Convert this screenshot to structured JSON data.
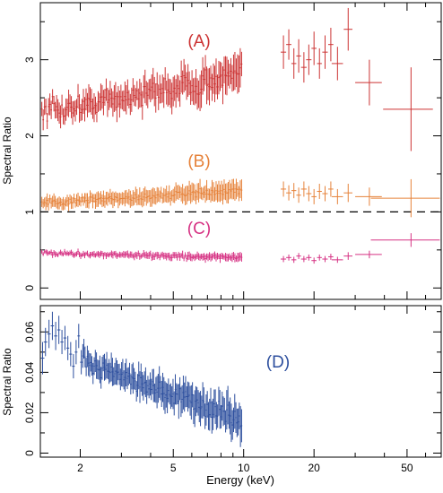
{
  "chart_data": [
    {
      "type": "scatter",
      "panel": "top",
      "ylabel": "Spectral Ratio",
      "xscale": "log",
      "xlim": [
        1.35,
        70
      ],
      "ylim": [
        -0.15,
        3.75
      ],
      "yticks": [
        0,
        1,
        2,
        3
      ],
      "ytick_labels": [
        "0",
        "1",
        "2",
        "3"
      ],
      "reference_line": {
        "y": 1,
        "style": "dashed"
      },
      "series": [
        {
          "label": "(A)",
          "color": "#cc3333",
          "low_band": {
            "x_start": 1.37,
            "x_end": 9.8,
            "y_start": 2.3,
            "y_end": 2.8,
            "scatter": 0.12,
            "err": 0.13,
            "n": 150
          },
          "high_points": [
            {
              "x": 14.8,
              "y": 3.1,
              "xerr": 0.4,
              "yerr": 0.22
            },
            {
              "x": 15.6,
              "y": 3.2,
              "xerr": 0.4,
              "yerr": 0.2
            },
            {
              "x": 16.4,
              "y": 2.95,
              "xerr": 0.4,
              "yerr": 0.2
            },
            {
              "x": 17.2,
              "y": 3.05,
              "xerr": 0.4,
              "yerr": 0.22
            },
            {
              "x": 18.1,
              "y": 2.9,
              "xerr": 0.5,
              "yerr": 0.2
            },
            {
              "x": 19.0,
              "y": 3.0,
              "xerr": 0.5,
              "yerr": 0.2
            },
            {
              "x": 20.0,
              "y": 3.15,
              "xerr": 0.5,
              "yerr": 0.22
            },
            {
              "x": 21.1,
              "y": 2.95,
              "xerr": 0.5,
              "yerr": 0.2
            },
            {
              "x": 22.3,
              "y": 3.1,
              "xerr": 0.6,
              "yerr": 0.22
            },
            {
              "x": 23.6,
              "y": 3.2,
              "xerr": 0.6,
              "yerr": 0.22
            },
            {
              "x": 25.2,
              "y": 2.95,
              "xerr": 1.4,
              "yerr": 0.22
            },
            {
              "x": 28.0,
              "y": 3.4,
              "xerr": 1.2,
              "yerr": 0.28
            },
            {
              "x": 34.5,
              "y": 2.7,
              "xerr": 4.5,
              "yerr": 0.3
            },
            {
              "x": 52.0,
              "y": 2.35,
              "xerr": 12.5,
              "yerr": 0.55
            }
          ]
        },
        {
          "label": "(B)",
          "color": "#e6823a",
          "low_band": {
            "x_start": 1.37,
            "x_end": 9.8,
            "y_start": 1.12,
            "y_end": 1.28,
            "scatter": 0.04,
            "err": 0.07,
            "n": 150
          },
          "high_points": [
            {
              "x": 14.8,
              "y": 1.3,
              "xerr": 0.4,
              "yerr": 0.1
            },
            {
              "x": 15.6,
              "y": 1.25,
              "xerr": 0.4,
              "yerr": 0.1
            },
            {
              "x": 16.4,
              "y": 1.28,
              "xerr": 0.4,
              "yerr": 0.1
            },
            {
              "x": 17.2,
              "y": 1.22,
              "xerr": 0.4,
              "yerr": 0.1
            },
            {
              "x": 18.1,
              "y": 1.3,
              "xerr": 0.5,
              "yerr": 0.1
            },
            {
              "x": 19.0,
              "y": 1.24,
              "xerr": 0.5,
              "yerr": 0.1
            },
            {
              "x": 20.0,
              "y": 1.2,
              "xerr": 0.5,
              "yerr": 0.1
            },
            {
              "x": 21.1,
              "y": 1.27,
              "xerr": 0.5,
              "yerr": 0.1
            },
            {
              "x": 22.3,
              "y": 1.24,
              "xerr": 0.6,
              "yerr": 0.1
            },
            {
              "x": 23.6,
              "y": 1.3,
              "xerr": 0.6,
              "yerr": 0.1
            },
            {
              "x": 25.2,
              "y": 1.2,
              "xerr": 1.4,
              "yerr": 0.1
            },
            {
              "x": 28.0,
              "y": 1.25,
              "xerr": 1.2,
              "yerr": 0.12
            },
            {
              "x": 34.5,
              "y": 1.2,
              "xerr": 4.5,
              "yerr": 0.12
            },
            {
              "x": 52.0,
              "y": 1.18,
              "xerr": 17.0,
              "yerr": 0.25
            }
          ]
        },
        {
          "label": "(C)",
          "color": "#d63384",
          "low_band": {
            "x_start": 1.37,
            "x_end": 9.8,
            "y_start": 0.46,
            "y_end": 0.4,
            "scatter": 0.02,
            "err": 0.03,
            "n": 150
          },
          "high_points": [
            {
              "x": 14.8,
              "y": 0.38,
              "xerr": 0.4,
              "yerr": 0.04
            },
            {
              "x": 15.6,
              "y": 0.4,
              "xerr": 0.4,
              "yerr": 0.04
            },
            {
              "x": 16.4,
              "y": 0.37,
              "xerr": 0.4,
              "yerr": 0.04
            },
            {
              "x": 17.2,
              "y": 0.42,
              "xerr": 0.4,
              "yerr": 0.04
            },
            {
              "x": 18.1,
              "y": 0.38,
              "xerr": 0.5,
              "yerr": 0.04
            },
            {
              "x": 19.0,
              "y": 0.4,
              "xerr": 0.5,
              "yerr": 0.04
            },
            {
              "x": 20.0,
              "y": 0.36,
              "xerr": 0.5,
              "yerr": 0.04
            },
            {
              "x": 21.1,
              "y": 0.4,
              "xerr": 0.5,
              "yerr": 0.04
            },
            {
              "x": 22.3,
              "y": 0.38,
              "xerr": 0.6,
              "yerr": 0.04
            },
            {
              "x": 23.6,
              "y": 0.41,
              "xerr": 0.6,
              "yerr": 0.04
            },
            {
              "x": 25.2,
              "y": 0.37,
              "xerr": 1.4,
              "yerr": 0.04
            },
            {
              "x": 28.0,
              "y": 0.42,
              "xerr": 1.2,
              "yerr": 0.05
            },
            {
              "x": 34.5,
              "y": 0.44,
              "xerr": 4.5,
              "yerr": 0.05
            },
            {
              "x": 52.0,
              "y": 0.63,
              "xerr": 17.0,
              "yerr": 0.09
            }
          ]
        }
      ]
    },
    {
      "type": "scatter",
      "panel": "bottom",
      "xlabel": "Energy (keV)",
      "ylabel": "Spectral Ratio",
      "xscale": "log",
      "xlim": [
        1.35,
        70
      ],
      "ylim": [
        -0.002,
        0.073
      ],
      "xticks": [
        2,
        5,
        10,
        20,
        50
      ],
      "xtick_labels": [
        "2",
        "5",
        "10",
        "20",
        "50"
      ],
      "yticks": [
        0,
        0.02,
        0.04,
        0.06
      ],
      "ytick_labels": [
        "0",
        "0.02",
        "0.04",
        "0.06"
      ],
      "series": [
        {
          "label": "(D)",
          "color": "#2d4f9e",
          "points": [
            {
              "x": 1.38,
              "y": 0.047,
              "xerr": 0.025,
              "yerr": 0.008
            },
            {
              "x": 1.42,
              "y": 0.055,
              "xerr": 0.025,
              "yerr": 0.007
            },
            {
              "x": 1.47,
              "y": 0.059,
              "xerr": 0.025,
              "yerr": 0.007
            },
            {
              "x": 1.52,
              "y": 0.063,
              "xerr": 0.025,
              "yerr": 0.007
            },
            {
              "x": 1.57,
              "y": 0.058,
              "xerr": 0.025,
              "yerr": 0.007
            },
            {
              "x": 1.62,
              "y": 0.061,
              "xerr": 0.025,
              "yerr": 0.007
            },
            {
              "x": 1.67,
              "y": 0.055,
              "xerr": 0.025,
              "yerr": 0.006
            },
            {
              "x": 1.72,
              "y": 0.057,
              "xerr": 0.025,
              "yerr": 0.006
            },
            {
              "x": 1.77,
              "y": 0.052,
              "xerr": 0.025,
              "yerr": 0.006
            },
            {
              "x": 1.82,
              "y": 0.049,
              "xerr": 0.025,
              "yerr": 0.006
            },
            {
              "x": 1.87,
              "y": 0.043,
              "xerr": 0.025,
              "yerr": 0.006
            },
            {
              "x": 1.92,
              "y": 0.05,
              "xerr": 0.025,
              "yerr": 0.006
            },
            {
              "x": 1.97,
              "y": 0.058,
              "xerr": 0.025,
              "yerr": 0.006
            },
            {
              "x": 2.02,
              "y": 0.045,
              "xerr": 0.025,
              "yerr": 0.006
            }
          ],
          "band": {
            "x_start": 2.05,
            "x_end": 9.8,
            "y_start": 0.046,
            "y_end": 0.016,
            "scatter": 0.004,
            "err": 0.005,
            "n": 140
          }
        }
      ]
    }
  ]
}
